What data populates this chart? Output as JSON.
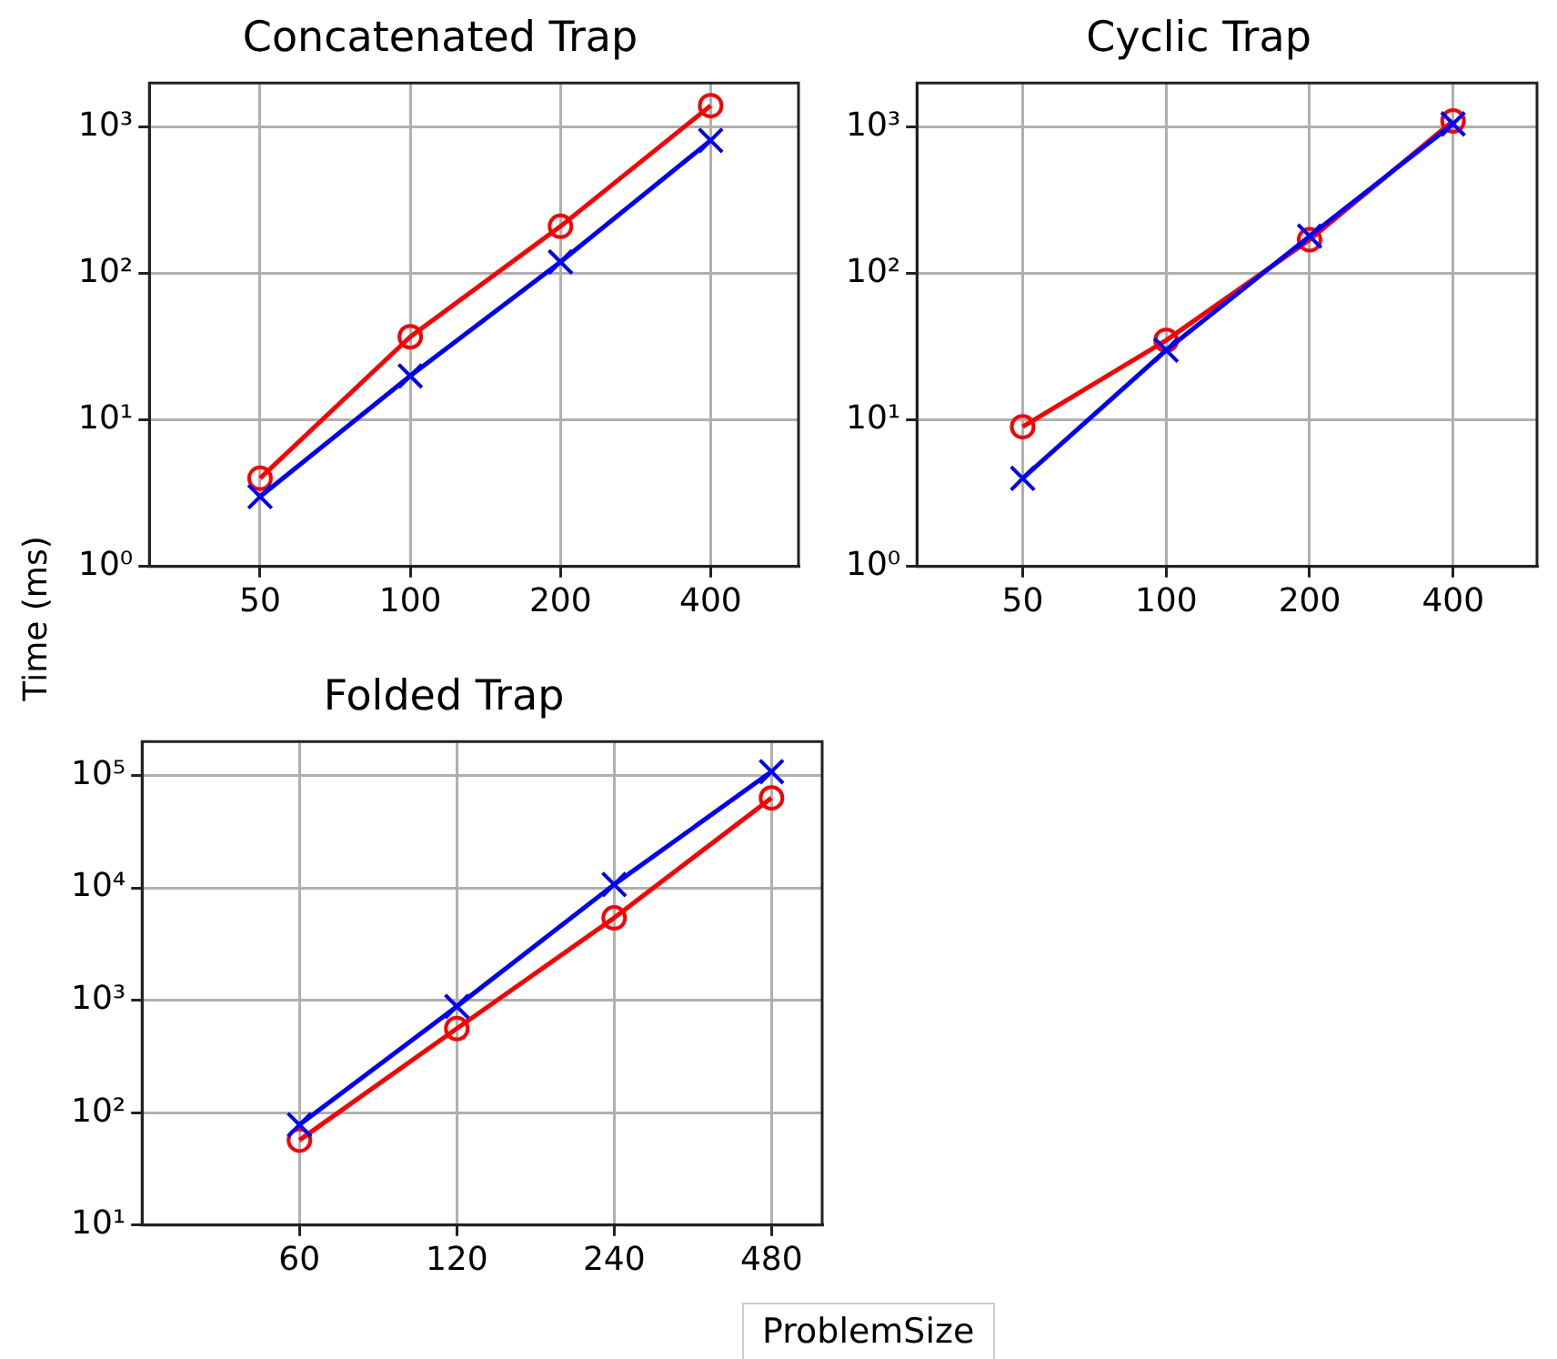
{
  "chart_data": [
    {
      "type": "line",
      "title": "Concatenated Trap",
      "ylabel": "Time (ms)",
      "x": [
        50,
        100,
        200,
        400
      ],
      "log": "xy",
      "grid": true,
      "xlim": [
        30,
        600
      ],
      "xticks": [
        50,
        100,
        200,
        400
      ],
      "ylim": [
        1,
        2000
      ],
      "yticks": [
        {
          "value": 1,
          "label": "10⁰"
        },
        {
          "value": 10,
          "label": "10¹"
        },
        {
          "value": 100,
          "label": "10²"
        },
        {
          "value": 1000,
          "label": "10³"
        }
      ],
      "series": [
        {
          "color": "#ff0000",
          "marker": "circle",
          "values": [
            4,
            37,
            210,
            1400
          ]
        },
        {
          "color": "#0000ff",
          "marker": "cross",
          "values": [
            3,
            20,
            120,
            810
          ]
        }
      ]
    },
    {
      "type": "line",
      "title": "Cyclic Trap",
      "x": [
        50,
        100,
        200,
        400
      ],
      "log": "xy",
      "grid": true,
      "xlim": [
        30,
        600
      ],
      "xticks": [
        50,
        100,
        200,
        400
      ],
      "ylim": [
        1,
        2000
      ],
      "yticks": [
        {
          "value": 1,
          "label": "10⁰"
        },
        {
          "value": 10,
          "label": "10¹"
        },
        {
          "value": 100,
          "label": "10²"
        },
        {
          "value": 1000,
          "label": "10³"
        }
      ],
      "series": [
        {
          "color": "#ff0000",
          "marker": "circle",
          "values": [
            9,
            35,
            170,
            1100
          ]
        },
        {
          "color": "#0000ff",
          "marker": "cross",
          "values": [
            4,
            30,
            180,
            1050
          ]
        }
      ]
    },
    {
      "type": "line",
      "title": "Folded Trap",
      "xlabel": "ProblemSize",
      "x": [
        60,
        120,
        240,
        480
      ],
      "log": "xy",
      "grid": true,
      "xlim": [
        30,
        600
      ],
      "xticks": [
        60,
        120,
        240,
        480
      ],
      "ylim": [
        10,
        200000
      ],
      "yticks": [
        {
          "value": 10,
          "label": "10¹"
        },
        {
          "value": 100,
          "label": "10²"
        },
        {
          "value": 1000,
          "label": "10³"
        },
        {
          "value": 10000,
          "label": "10⁴"
        },
        {
          "value": 100000,
          "label": "10⁵"
        }
      ],
      "series": [
        {
          "color": "#ff0000",
          "marker": "circle",
          "values": [
            57,
            560,
            5400,
            63000
          ]
        },
        {
          "color": "#0000ff",
          "marker": "cross",
          "values": [
            78,
            880,
            10700,
            108000
          ]
        }
      ]
    }
  ]
}
